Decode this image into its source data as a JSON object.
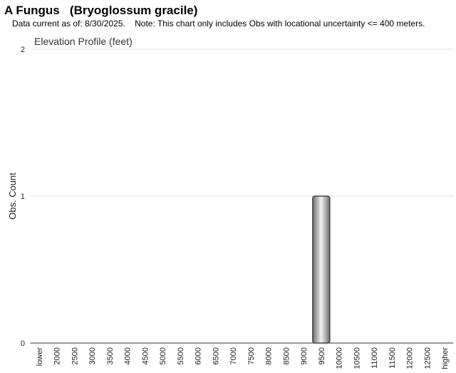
{
  "title": "A Fungus   (Bryoglossum gracile)",
  "subtitle": "Data current as of: 8/30/2025.    Note: This chart only includes Obs with locational uncertainty <= 400 meters.",
  "chart_data": {
    "type": "bar",
    "title": "Elevation Profile (feet)",
    "y_label": "Obs. Count",
    "categories": [
      "lower",
      "2000",
      "2500",
      "3000",
      "3500",
      "4000",
      "4500",
      "5000",
      "5500",
      "6000",
      "6500",
      "7000",
      "7500",
      "8000",
      "8500",
      "9000",
      "9500",
      "10000",
      "10500",
      "11000",
      "11500",
      "12000",
      "12500",
      "higher"
    ],
    "values": [
      0,
      0,
      0,
      0,
      0,
      0,
      0,
      0,
      0,
      0,
      0,
      0,
      0,
      0,
      0,
      0,
      1,
      0,
      0,
      0,
      0,
      0,
      0,
      0
    ],
    "ylim": [
      0,
      2
    ],
    "yticks": [
      0,
      1,
      2
    ],
    "grid": true
  }
}
